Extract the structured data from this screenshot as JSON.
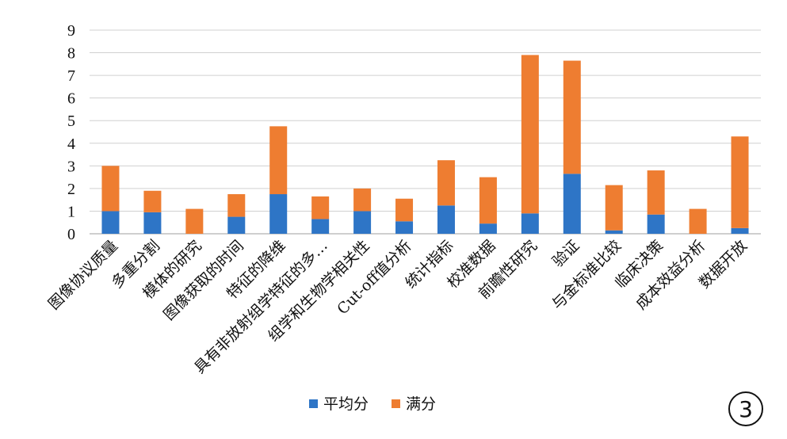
{
  "chart_data": {
    "type": "bar",
    "stacked": true,
    "categories": [
      "图像协议质量",
      "多重分割",
      "模体的研究",
      "图像获取的时间",
      "特征的降维",
      "具有非放射组学特征的多…",
      "组学和生物学相关性",
      "Cut-off值分析",
      "统计指标",
      "校准数据",
      "前瞻性研究",
      "验证",
      "与金标准比较",
      "临床决策",
      "成本效益分析",
      "数据开放"
    ],
    "series": [
      {
        "name": "平均分",
        "color": "#2e75c6",
        "values": [
          1.0,
          0.95,
          0.0,
          0.75,
          1.75,
          0.65,
          1.0,
          0.55,
          1.25,
          0.45,
          0.9,
          2.65,
          0.15,
          0.85,
          0.0,
          0.25
        ]
      },
      {
        "name": "满分",
        "color": "#ee7d31",
        "values": [
          2.0,
          0.95,
          1.1,
          1.0,
          3.0,
          1.0,
          1.0,
          1.0,
          2.0,
          2.05,
          7.0,
          5.0,
          2.0,
          1.95,
          1.1,
          4.05
        ]
      }
    ],
    "ylim": [
      0,
      9
    ],
    "yticks": [
      "0",
      "1",
      "2",
      "3",
      "4",
      "5",
      "6",
      "7",
      "8",
      "9"
    ],
    "grid": true,
    "legend": "bottom"
  },
  "badge": "3"
}
